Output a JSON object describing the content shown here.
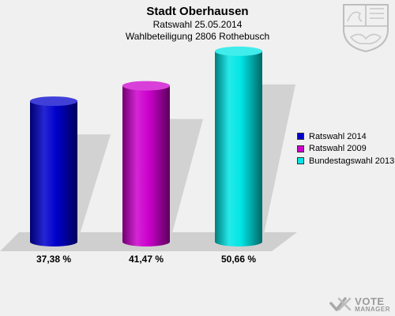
{
  "header": {
    "title": "Stadt Oberhausen",
    "subtitle1": "Ratswahl 25.05.2014",
    "subtitle2": "Wahlbeteiligung 2806 Rothebusch"
  },
  "chart_data": {
    "type": "bar",
    "title": "Stadt Oberhausen",
    "subtitle": "Ratswahl 25.05.2014 · Wahlbeteiligung 2806 Rothebusch",
    "categories": [
      "Ratswahl 2014",
      "Ratswahl 2009",
      "Bundestagswahl 2013"
    ],
    "values": [
      37.38,
      41.47,
      50.66
    ],
    "value_labels": [
      "37,38 %",
      "41,47 %",
      "50,66 %"
    ],
    "colors": [
      "#0000cc",
      "#cc00cc",
      "#00e5e5"
    ],
    "unit": "%",
    "legend_position": "right",
    "grid": false
  },
  "legend": {
    "items": [
      {
        "label": "Ratswahl 2014",
        "color": "#0000cc"
      },
      {
        "label": "Ratswahl 2009",
        "color": "#cc00cc"
      },
      {
        "label": "Bundestagswahl 2013",
        "color": "#00e5e5"
      }
    ]
  },
  "brand": {
    "line1": "VOTE",
    "line2": "MANAGER"
  }
}
